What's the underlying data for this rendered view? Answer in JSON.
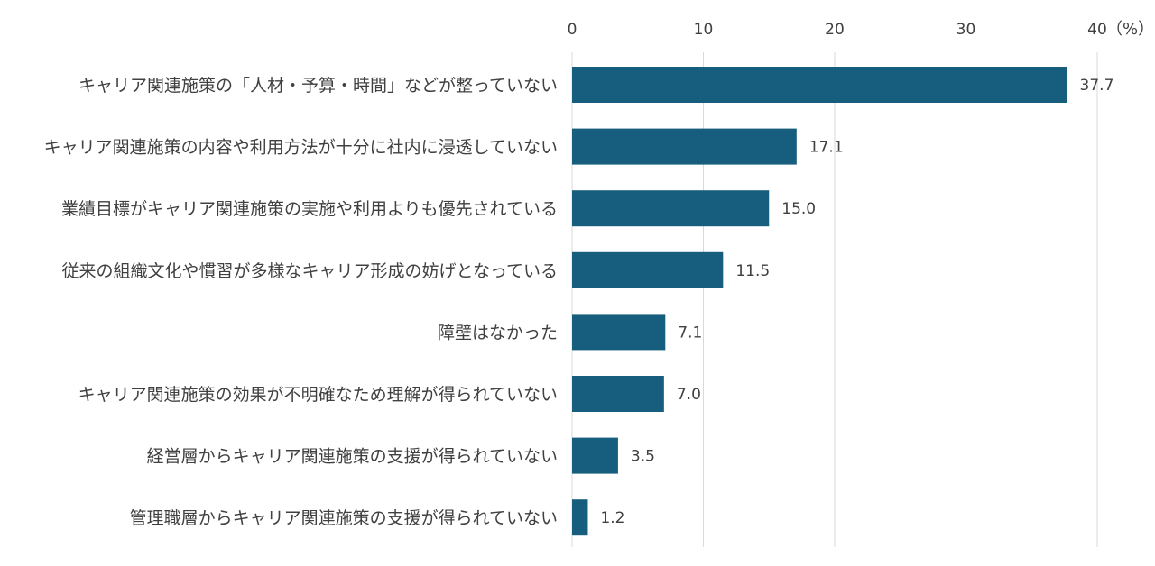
{
  "chart_data": {
    "type": "bar",
    "orientation": "horizontal",
    "unit_label": "（%）",
    "xlim": [
      0,
      40
    ],
    "x_ticks": [
      "0",
      "10",
      "20",
      "30",
      "40"
    ],
    "grid": true,
    "categories": [
      "キャリア関連施策の「人材・予算・時間」などが整っていない",
      "キャリア関連施策の内容や利用方法が十分に社内に浸透していない",
      "業績目標がキャリア関連施策の実施や利用よりも優先されている",
      "従来の組織文化や慣習が多様なキャリア形成の妨げとなっている",
      "障壁はなかった",
      "キャリア関連施策の効果が不明確なため理解が得られていない",
      "経営層からキャリア関連施策の支援が得られていない",
      "管理職層からキャリア関連施策の支援が得られていない"
    ],
    "values": [
      37.7,
      17.1,
      15.0,
      11.5,
      7.1,
      7.0,
      3.5,
      1.2
    ],
    "value_labels": [
      "37.7",
      "17.1",
      "15.0",
      "11.5",
      "7.1",
      "7.0",
      "3.5",
      "1.2"
    ],
    "bar_color": "#175e7e",
    "grid_color": "#d9d9d9",
    "text_color": "#404040"
  }
}
